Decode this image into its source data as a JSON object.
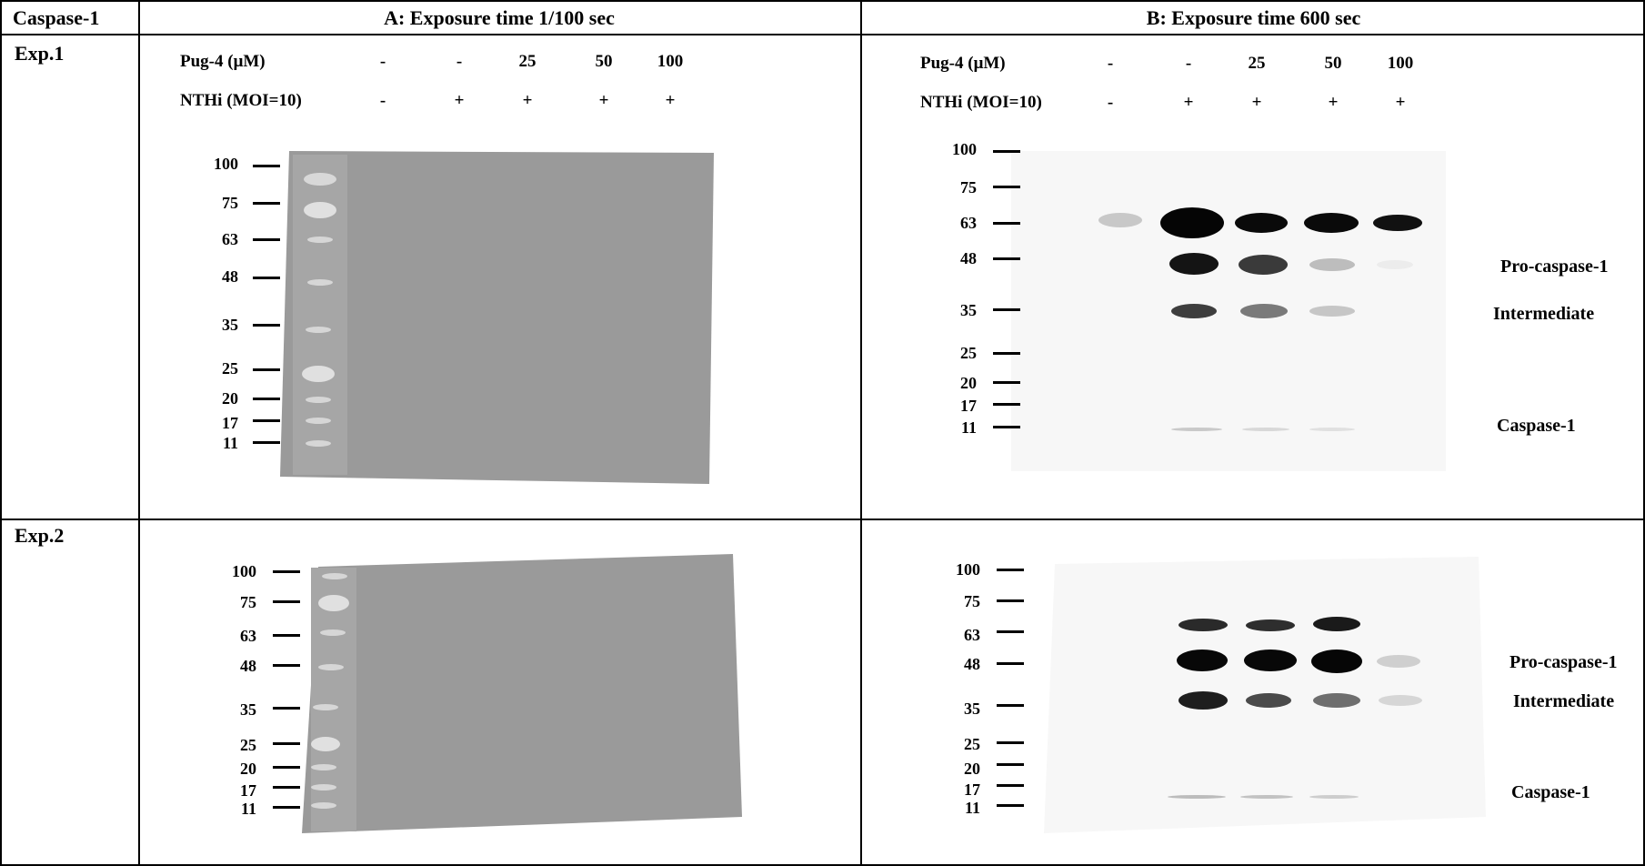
{
  "headers": {
    "corner": "Caspase-1",
    "col_a": "A: Exposure time 1/100 sec",
    "col_b": "B: Exposure time 600 sec"
  },
  "rows": [
    "Exp.1",
    "Exp.2"
  ],
  "conditions": {
    "pug_label": "Pug-4 (μM)",
    "nthi_label": "NTHi (MOI=10)",
    "pug_values": [
      "-",
      "-",
      "25",
      "50",
      "100"
    ],
    "nthi_values": [
      "-",
      "+",
      "+",
      "+",
      "+"
    ]
  },
  "markers": [
    "100",
    "75",
    "63",
    "48",
    "35",
    "25",
    "20",
    "17",
    "11"
  ],
  "band_labels": {
    "pro": "Pro-caspase-1",
    "intermediate": "Intermediate",
    "mature": "Caspase-1"
  },
  "colors": {
    "blot_gray": "#9a9a9a",
    "blot_white": "#f7f7f7",
    "band_dark": "#0a0a0a"
  }
}
